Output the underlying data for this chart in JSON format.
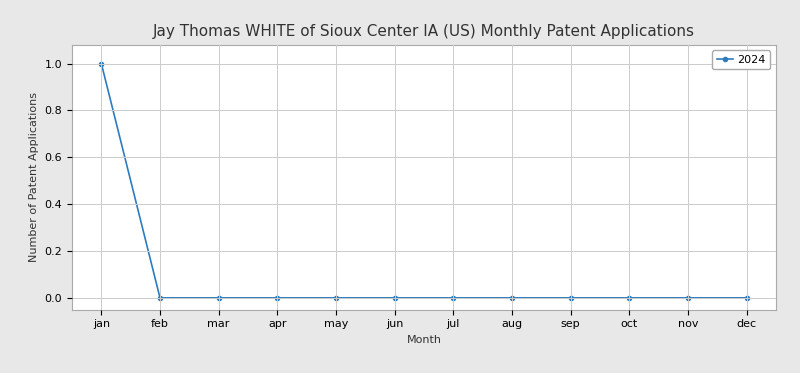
{
  "title": "Jay Thomas WHITE of Sioux Center IA (US) Monthly Patent Applications",
  "xlabel": "Month",
  "ylabel": "Number of Patent Applications",
  "months": [
    "jan",
    "feb",
    "mar",
    "apr",
    "may",
    "jun",
    "jul",
    "aug",
    "sep",
    "oct",
    "nov",
    "dec"
  ],
  "series": {
    "2024": [
      1,
      0,
      0,
      0,
      0,
      0,
      0,
      0,
      0,
      0,
      0,
      0
    ]
  },
  "line_color": "#2e7bbf",
  "marker": "o",
  "ylim": [
    -0.05,
    1.08
  ],
  "legend_label": "2024",
  "plot_bg_color": "#ffffff",
  "fig_bg_color": "#e8e8e8",
  "grid_color": "#cccccc",
  "title_fontsize": 11,
  "axis_label_fontsize": 8,
  "tick_fontsize": 8,
  "legend_fontsize": 8,
  "marker_size": 3,
  "line_width": 1.2
}
